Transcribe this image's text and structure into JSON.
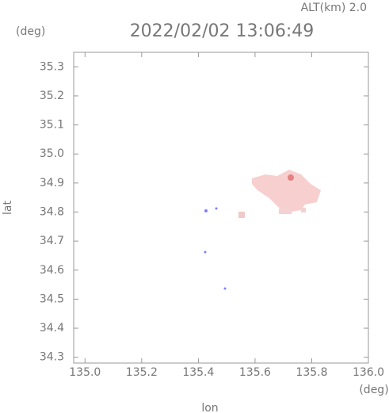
{
  "chart_data": {
    "type": "map",
    "title": "2022/02/02 13:06:49",
    "subtitle": "ALT(km)  2.0",
    "y_unit": "(deg)",
    "x_unit": "(deg)",
    "x_label": "lon",
    "y_label": "lat",
    "xlim": [
      134.96,
      136.0
    ],
    "ylim": [
      34.28,
      35.35
    ],
    "xticks": [
      {
        "value": 135,
        "label": "135.0"
      },
      135.2,
      135.4,
      135.6,
      135.8,
      {
        "value": 136,
        "label": "136.0"
      }
    ],
    "yticks": [
      {
        "value": 34.3,
        "label": "34.3"
      },
      34.4,
      34.5,
      34.6,
      34.7,
      34.8,
      34.9,
      {
        "value": 35,
        "label": "35.0"
      },
      35.1,
      35.2,
      35.3
    ]
  }
}
